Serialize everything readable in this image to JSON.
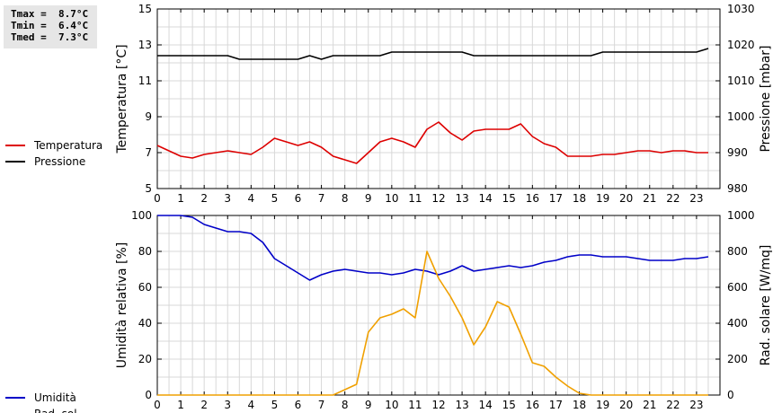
{
  "stats": {
    "tmax": "Tmax =  8.7°C",
    "tmin": "Tmin =  6.4°C",
    "tmed": "Tmed =  7.3°C"
  },
  "colors": {
    "temperature": "#dd0000",
    "pressure": "#000000",
    "humidity": "#0000c8",
    "radiation": "#f0a000",
    "grid": "#d8d8d8",
    "stats_bg": "#e6e6e6"
  },
  "legend_top": [
    {
      "label": "Temperatura",
      "color": "#dd0000"
    },
    {
      "label": "Pressione",
      "color": "#000000"
    }
  ],
  "legend_bottom": [
    {
      "label": "Umidità",
      "color": "#0000c8"
    },
    {
      "label": "Rad. sol.",
      "color": "#f0a000"
    }
  ],
  "chart_data": [
    {
      "type": "line",
      "ylabel": "Temperatura [°C]",
      "y2label": "Pressione [mbar]",
      "xlim": [
        0,
        24
      ],
      "ylim": [
        5,
        15
      ],
      "y2lim": [
        980,
        1030
      ],
      "x_ticks": [
        0,
        1,
        2,
        3,
        4,
        5,
        6,
        7,
        8,
        9,
        10,
        11,
        12,
        13,
        14,
        15,
        16,
        17,
        18,
        19,
        20,
        21,
        22,
        23
      ],
      "y_ticks": [
        5,
        7,
        9,
        11,
        13,
        15
      ],
      "y2_ticks": [
        980,
        990,
        1000,
        1010,
        1020,
        1030
      ],
      "grid": true,
      "series": [
        {
          "name": "Temperatura",
          "axis": "left",
          "color": "#dd0000",
          "x": [
            0,
            0.5,
            1,
            1.5,
            2,
            2.5,
            3,
            3.5,
            4,
            4.5,
            5,
            5.5,
            6,
            6.5,
            7,
            7.5,
            8,
            8.5,
            9,
            9.5,
            10,
            10.5,
            11,
            11.5,
            12,
            12.5,
            13,
            13.5,
            14,
            14.5,
            15,
            15.5,
            16,
            16.5,
            17,
            17.5,
            18,
            18.5,
            19,
            19.5,
            20,
            20.5,
            21,
            21.5,
            22,
            22.5,
            23,
            23.5
          ],
          "y": [
            7.4,
            7.1,
            6.8,
            6.7,
            6.9,
            7.0,
            7.1,
            7.0,
            6.9,
            7.3,
            7.8,
            7.6,
            7.4,
            7.6,
            7.3,
            6.8,
            6.6,
            6.4,
            7.0,
            7.6,
            7.8,
            7.6,
            7.3,
            8.3,
            8.7,
            8.1,
            7.7,
            8.2,
            8.3,
            8.3,
            8.3,
            8.6,
            7.9,
            7.5,
            7.3,
            6.8,
            6.8,
            6.8,
            6.9,
            6.9,
            7.0,
            7.1,
            7.1,
            7.0,
            7.1,
            7.1,
            7.0,
            7.0
          ]
        },
        {
          "name": "Pressione",
          "axis": "right",
          "color": "#000000",
          "x": [
            0,
            0.5,
            1,
            1.5,
            2,
            2.5,
            3,
            3.5,
            4,
            4.5,
            5,
            5.5,
            6,
            6.5,
            7,
            7.5,
            8,
            8.5,
            9,
            9.5,
            10,
            10.5,
            11,
            11.5,
            12,
            12.5,
            13,
            13.5,
            14,
            14.5,
            15,
            15.5,
            16,
            16.5,
            17,
            17.5,
            18,
            18.5,
            19,
            19.5,
            20,
            20.5,
            21,
            21.5,
            22,
            22.5,
            23,
            23.5
          ],
          "y": [
            1017,
            1017,
            1017,
            1017,
            1017,
            1017,
            1017,
            1016,
            1016,
            1016,
            1016,
            1016,
            1016,
            1017,
            1016,
            1017,
            1017,
            1017,
            1017,
            1017,
            1018,
            1018,
            1018,
            1018,
            1018,
            1018,
            1018,
            1017,
            1017,
            1017,
            1017,
            1017,
            1017,
            1017,
            1017,
            1017,
            1017,
            1017,
            1018,
            1018,
            1018,
            1018,
            1018,
            1018,
            1018,
            1018,
            1018,
            1019
          ]
        }
      ]
    },
    {
      "type": "line",
      "ylabel": "Umidità relativa [%]",
      "y2label": "Rad. solare [W/mq]",
      "xlim": [
        0,
        24
      ],
      "ylim": [
        0,
        100
      ],
      "y2lim": [
        0,
        1000
      ],
      "x_ticks": [
        0,
        1,
        2,
        3,
        4,
        5,
        6,
        7,
        8,
        9,
        10,
        11,
        12,
        13,
        14,
        15,
        16,
        17,
        18,
        19,
        20,
        21,
        22,
        23
      ],
      "y_ticks": [
        0,
        20,
        40,
        60,
        80,
        100
      ],
      "y2_ticks": [
        0,
        200,
        400,
        600,
        800,
        1000
      ],
      "grid": true,
      "series": [
        {
          "name": "Umidità",
          "axis": "left",
          "color": "#0000c8",
          "x": [
            0,
            0.5,
            1,
            1.5,
            2,
            2.5,
            3,
            3.5,
            4,
            4.5,
            5,
            5.5,
            6,
            6.5,
            7,
            7.5,
            8,
            8.5,
            9,
            9.5,
            10,
            10.5,
            11,
            11.5,
            12,
            12.5,
            13,
            13.5,
            14,
            14.5,
            15,
            15.5,
            16,
            16.5,
            17,
            17.5,
            18,
            18.5,
            19,
            19.5,
            20,
            20.5,
            21,
            21.5,
            22,
            22.5,
            23,
            23.5
          ],
          "y": [
            100,
            100,
            100,
            99,
            95,
            93,
            91,
            91,
            90,
            85,
            76,
            72,
            68,
            64,
            67,
            69,
            70,
            69,
            68,
            68,
            67,
            68,
            70,
            69,
            67,
            69,
            72,
            69,
            70,
            71,
            72,
            71,
            72,
            74,
            75,
            77,
            78,
            78,
            77,
            77,
            77,
            76,
            75,
            75,
            75,
            76,
            76,
            77
          ]
        },
        {
          "name": "Rad. sol.",
          "axis": "right",
          "color": "#f0a000",
          "x": [
            0,
            0.5,
            1,
            1.5,
            2,
            2.5,
            3,
            3.5,
            4,
            4.5,
            5,
            5.5,
            6,
            6.5,
            7,
            7.5,
            8,
            8.5,
            9,
            9.5,
            10,
            10.5,
            11,
            11.5,
            12,
            12.5,
            13,
            13.5,
            14,
            14.5,
            15,
            15.5,
            16,
            16.5,
            17,
            17.5,
            18,
            18.5,
            19,
            19.5,
            20,
            20.5,
            21,
            21.5,
            22,
            22.5,
            23,
            23.5
          ],
          "y": [
            0,
            0,
            0,
            0,
            0,
            0,
            0,
            0,
            0,
            0,
            0,
            0,
            0,
            0,
            0,
            0,
            30,
            60,
            350,
            430,
            450,
            480,
            430,
            800,
            650,
            550,
            430,
            280,
            380,
            520,
            490,
            340,
            180,
            160,
            100,
            50,
            10,
            0,
            0,
            0,
            0,
            0,
            0,
            0,
            0,
            0,
            0,
            0
          ]
        }
      ]
    }
  ]
}
